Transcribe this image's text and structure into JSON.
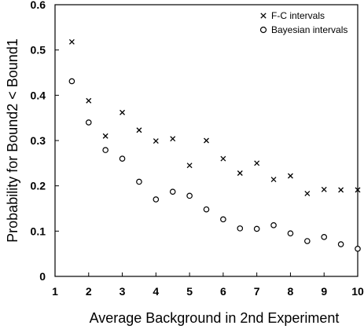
{
  "chart_data": {
    "type": "scatter",
    "title": "",
    "xlabel": "Average Background in 2nd Experiment",
    "ylabel": "Probability for Bound2 < Bound1",
    "xlim": [
      1,
      10
    ],
    "ylim": [
      0,
      0.6
    ],
    "xticks": [
      1,
      2,
      3,
      4,
      5,
      6,
      7,
      8,
      9,
      10
    ],
    "xtick_labels": [
      "1",
      "2",
      "3",
      "4",
      "5",
      "6",
      "7",
      "8",
      "9",
      "10"
    ],
    "yticks": [
      0,
      0.1,
      0.2,
      0.3,
      0.4,
      0.5,
      0.6
    ],
    "ytick_labels": [
      "0",
      "0.1",
      "0.2",
      "0.3",
      "0.4",
      "0.5",
      "0.6"
    ],
    "grid": false,
    "legend_position": "top-right",
    "series": [
      {
        "name": "F-C intervals",
        "marker": "x",
        "color": "#000000",
        "x": [
          1.5,
          2,
          2.5,
          3,
          3.5,
          4,
          4.5,
          5,
          5.5,
          6,
          6.5,
          7,
          7.5,
          8,
          8.5,
          9,
          9.5,
          10
        ],
        "y": [
          0.518,
          0.388,
          0.31,
          0.362,
          0.323,
          0.299,
          0.304,
          0.245,
          0.3,
          0.26,
          0.228,
          0.25,
          0.214,
          0.222,
          0.183,
          0.192,
          0.191,
          0.191
        ]
      },
      {
        "name": "Bayesian intervals",
        "marker": "o",
        "color": "#000000",
        "x": [
          1.5,
          2,
          2.5,
          3,
          3.5,
          4,
          4.5,
          5,
          5.5,
          6,
          6.5,
          7,
          7.5,
          8,
          8.5,
          9,
          9.5,
          10
        ],
        "y": [
          0.431,
          0.34,
          0.279,
          0.26,
          0.209,
          0.17,
          0.187,
          0.178,
          0.148,
          0.126,
          0.106,
          0.105,
          0.113,
          0.095,
          0.078,
          0.087,
          0.071,
          0.061
        ]
      }
    ]
  }
}
